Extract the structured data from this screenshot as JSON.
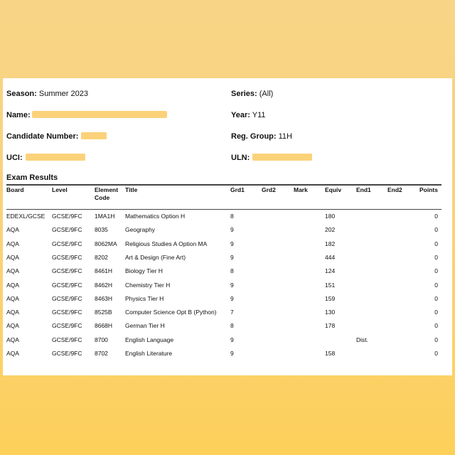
{
  "header": {
    "season_label": "Season:",
    "season_value": "Summer 2023",
    "series_label": "Series:",
    "series_value": "(All)",
    "name_label": "Name:",
    "year_label": "Year:",
    "year_value": "Y11",
    "candidate_label": "Candidate Number:",
    "reg_label": "Reg. Group:",
    "reg_value": "11H",
    "uci_label": "UCI:",
    "uln_label": "ULN:"
  },
  "section_title": "Exam Results",
  "columns": [
    "Board",
    "Level",
    "Element Code",
    "Title",
    "Grd1",
    "Grd2",
    "Mark",
    "Equiv",
    "End1",
    "End2",
    "Points"
  ],
  "rows": [
    {
      "board": "EDEXL/GCSE",
      "level": "GCSE/9FC",
      "code": "1MA1H",
      "title": "Mathematics Option H",
      "grd1": "8",
      "equiv": "180",
      "end1": "",
      "points": "0"
    },
    {
      "board": "AQA",
      "level": "GCSE/9FC",
      "code": "8035",
      "title": "Geography",
      "grd1": "9",
      "equiv": "202",
      "end1": "",
      "points": "0"
    },
    {
      "board": "AQA",
      "level": "GCSE/9FC",
      "code": "8062MA",
      "title": "Religious Studies A Option MA",
      "grd1": "9",
      "equiv": "182",
      "end1": "",
      "points": "0"
    },
    {
      "board": "AQA",
      "level": "GCSE/9FC",
      "code": "8202",
      "title": "Art & Design (Fine Art)",
      "grd1": "9",
      "equiv": "444",
      "end1": "",
      "points": "0"
    },
    {
      "board": "AQA",
      "level": "GCSE/9FC",
      "code": "8461H",
      "title": "Biology Tier H",
      "grd1": "8",
      "equiv": "124",
      "end1": "",
      "points": "0"
    },
    {
      "board": "AQA",
      "level": "GCSE/9FC",
      "code": "8462H",
      "title": "Chemistry Tier H",
      "grd1": "9",
      "equiv": "151",
      "end1": "",
      "points": "0"
    },
    {
      "board": "AQA",
      "level": "GCSE/9FC",
      "code": "8463H",
      "title": "Physics Tier H",
      "grd1": "9",
      "equiv": "159",
      "end1": "",
      "points": "0"
    },
    {
      "board": "AQA",
      "level": "GCSE/9FC",
      "code": "8525B",
      "title": "Computer Science Opt B (Python)",
      "grd1": "7",
      "equiv": "130",
      "end1": "",
      "points": "0"
    },
    {
      "board": "AQA",
      "level": "GCSE/9FC",
      "code": "8668H",
      "title": "German Tier H",
      "grd1": "8",
      "equiv": "178",
      "end1": "",
      "points": "0"
    },
    {
      "board": "AQA",
      "level": "GCSE/9FC",
      "code": "8700",
      "title": "English Language",
      "grd1": "9",
      "equiv": "",
      "end1": "Dist.",
      "points": "0"
    },
    {
      "board": "AQA",
      "level": "GCSE/9FC",
      "code": "8702",
      "title": "English Literature",
      "grd1": "9",
      "equiv": "158",
      "end1": "",
      "points": "0"
    }
  ],
  "colors": {
    "background": "#f9d27a",
    "redaction": "#fbd27a",
    "paper": "#ffffff"
  }
}
